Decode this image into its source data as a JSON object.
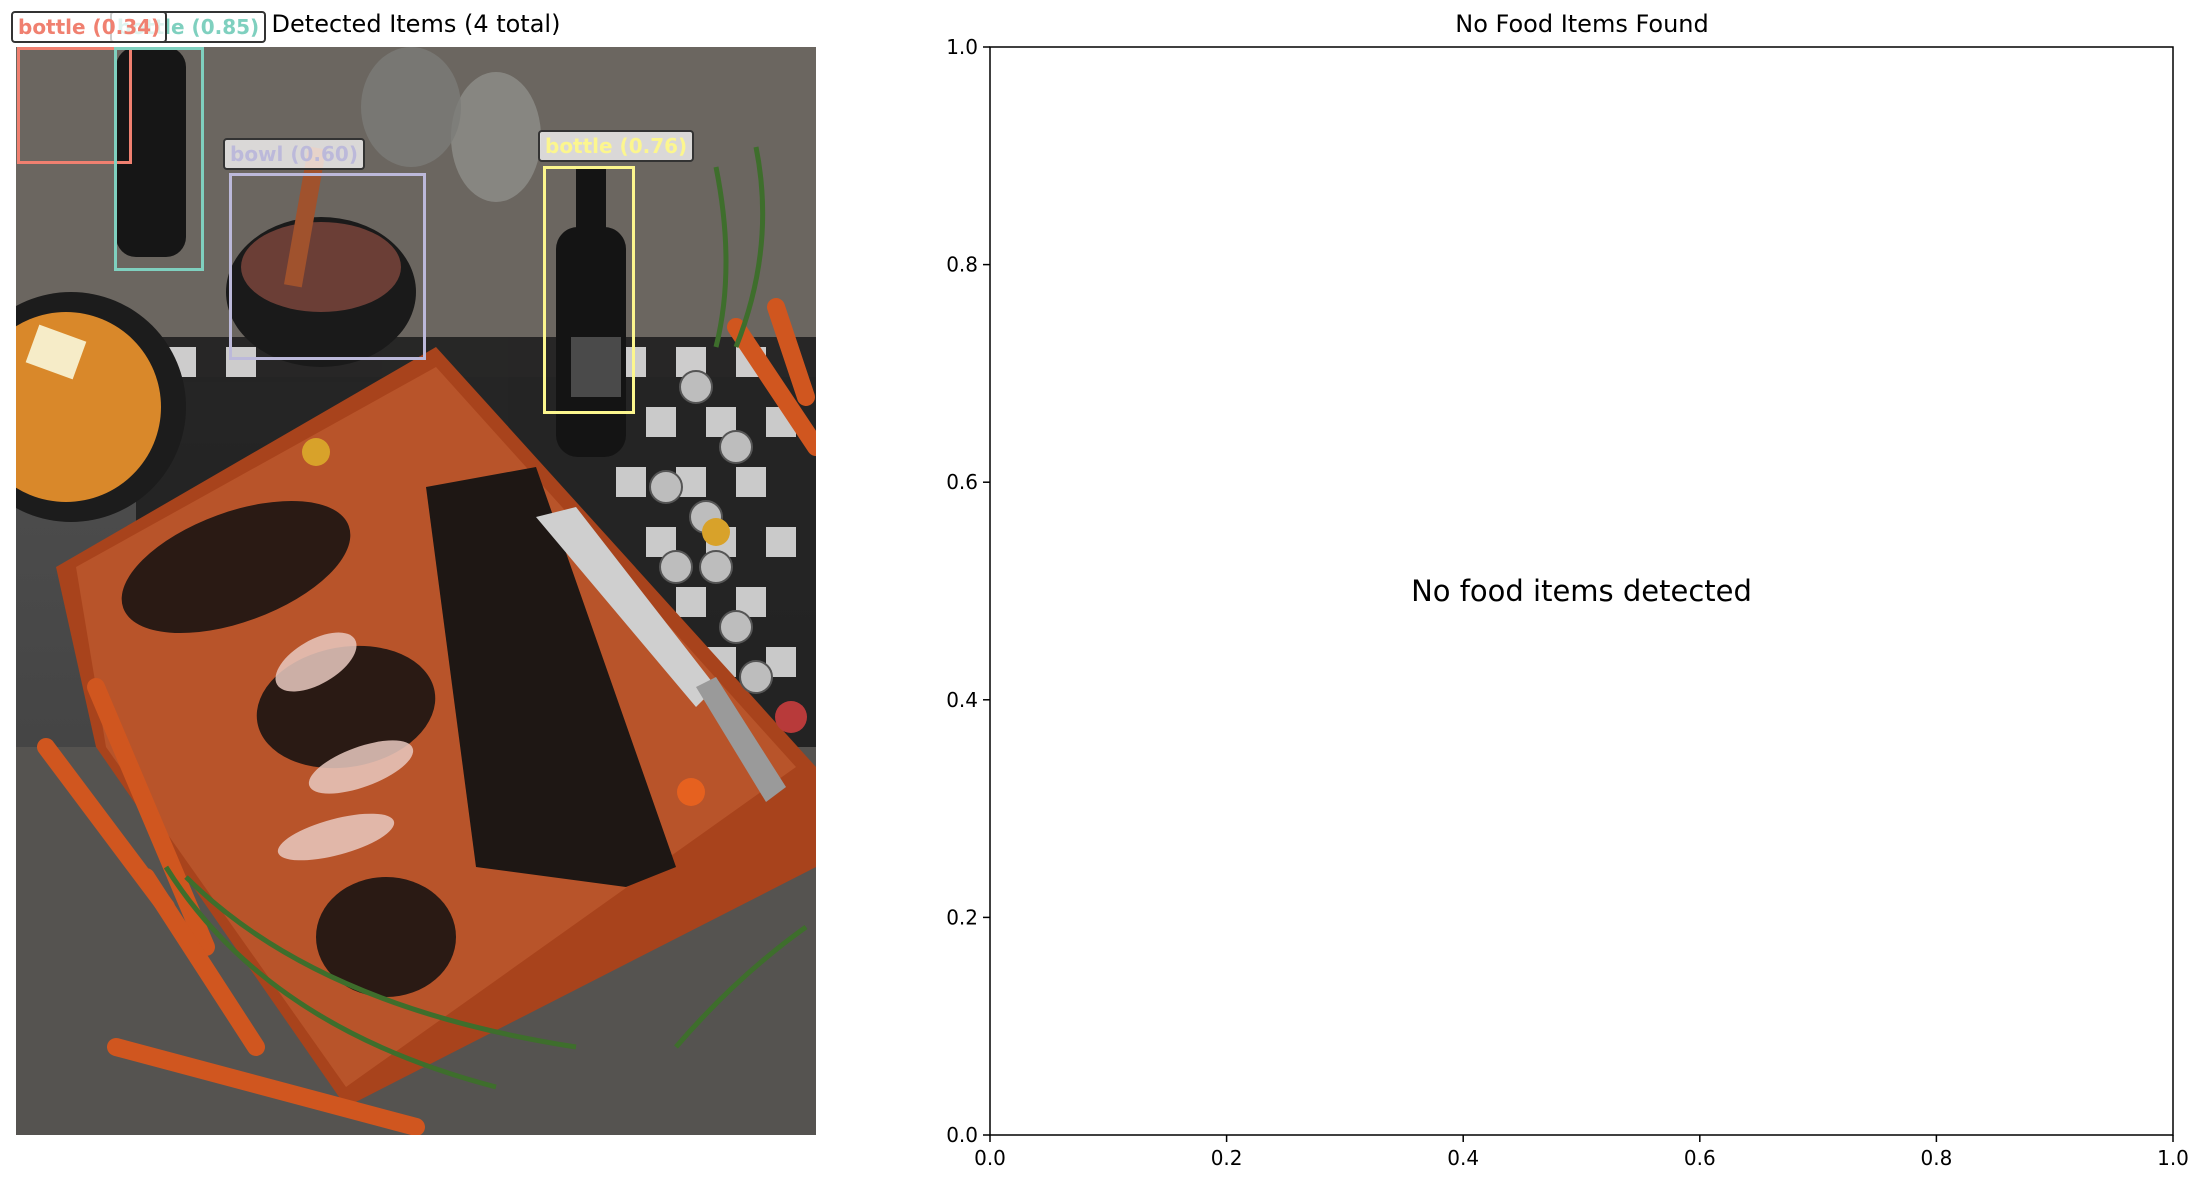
{
  "left_panel": {
    "title": "Detected Items (4 total)",
    "detections": [
      {
        "label": "bottle (0.34)",
        "color": "#f08070"
      },
      {
        "label": "bottle (0.85)",
        "color": "#7fd0bf"
      },
      {
        "label": "bowl (0.60)",
        "color": "#bcb9da"
      },
      {
        "label": "bottle (0.76)",
        "color": "#fcf68e"
      }
    ]
  },
  "chart_data": {
    "type": "scatter",
    "title": "No Food Items Found",
    "annotation": "No food items detected",
    "xlim": [
      0.0,
      1.0
    ],
    "ylim": [
      0.0,
      1.0
    ],
    "xticks": [
      "0.0",
      "0.2",
      "0.4",
      "0.6",
      "0.8",
      "1.0"
    ],
    "yticks": [
      "0.0",
      "0.2",
      "0.4",
      "0.6",
      "0.8",
      "1.0"
    ],
    "grid": false,
    "series": []
  }
}
